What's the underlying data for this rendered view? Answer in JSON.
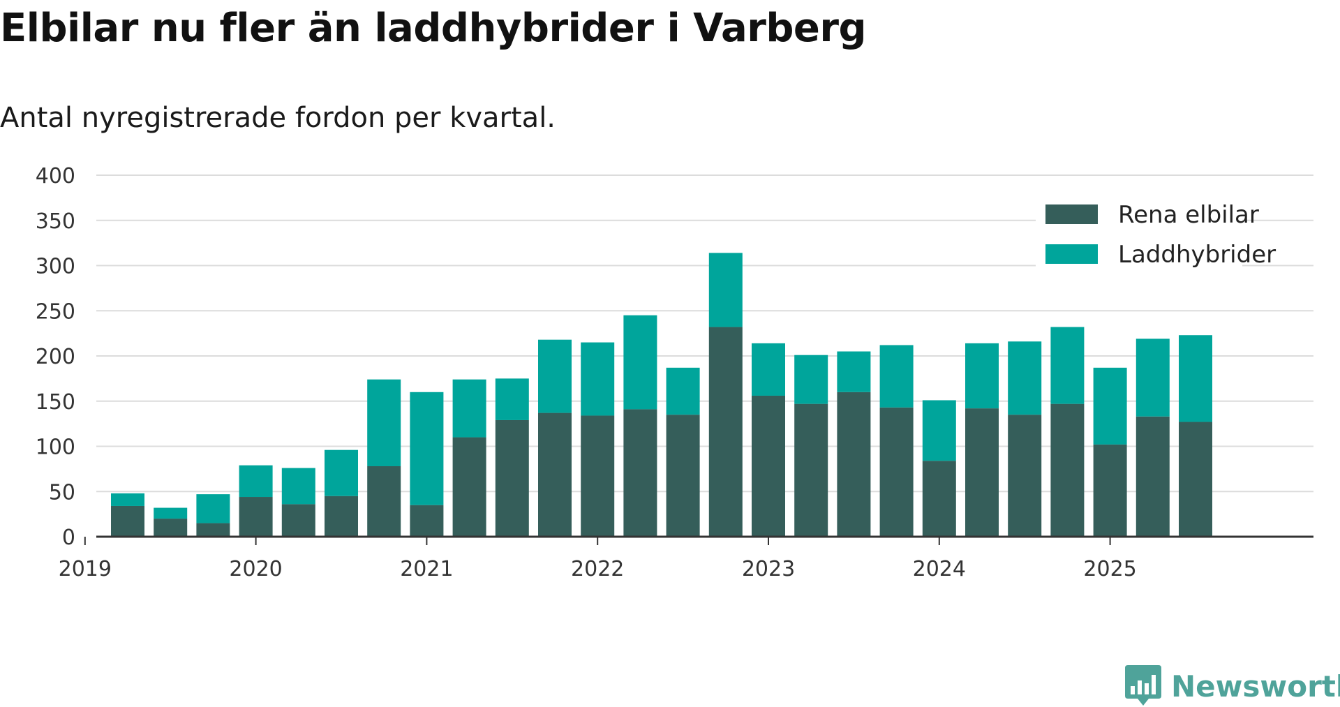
{
  "title": "Elbilar nu fler än laddhybrider i Varberg",
  "subtitle": "Antal nyregistrerade fordon per kvartal.",
  "brand": "Newsworthy",
  "chart_data": {
    "type": "bar",
    "stacked": true,
    "x_ticks": [
      "2019",
      "2020",
      "2021",
      "2022",
      "2023",
      "2024",
      "2025"
    ],
    "y_ticks": [
      "0",
      "50",
      "100",
      "150",
      "200",
      "250",
      "300",
      "350",
      "400"
    ],
    "ylim": [
      0,
      400
    ],
    "grid": true,
    "legend_position": "top-right",
    "categories": [
      "2019 Q2",
      "2019 Q3",
      "2019 Q4",
      "2020 Q1",
      "2020 Q2",
      "2020 Q3",
      "2020 Q4",
      "2021 Q1",
      "2021 Q2",
      "2021 Q3",
      "2021 Q4",
      "2022 Q1",
      "2022 Q2",
      "2022 Q3",
      "2022 Q4",
      "2023 Q1",
      "2023 Q2",
      "2023 Q3",
      "2023 Q4",
      "2024 Q1",
      "2024 Q2",
      "2024 Q3",
      "2024 Q4",
      "2025 Q1",
      "2025 Q2",
      "2025 Q3"
    ],
    "series": [
      {
        "name": "Rena elbilar",
        "color": "#355e5a",
        "values": [
          34,
          20,
          15,
          44,
          36,
          45,
          78,
          35,
          110,
          129,
          137,
          134,
          141,
          135,
          232,
          156,
          147,
          160,
          143,
          84,
          142,
          135,
          147,
          102,
          133,
          127
        ]
      },
      {
        "name": "Laddhybrider",
        "color": "#00a59b",
        "values": [
          14,
          12,
          32,
          35,
          40,
          51,
          96,
          125,
          64,
          46,
          81,
          81,
          104,
          52,
          82,
          58,
          54,
          45,
          69,
          67,
          72,
          81,
          85,
          85,
          86,
          96
        ]
      }
    ]
  }
}
